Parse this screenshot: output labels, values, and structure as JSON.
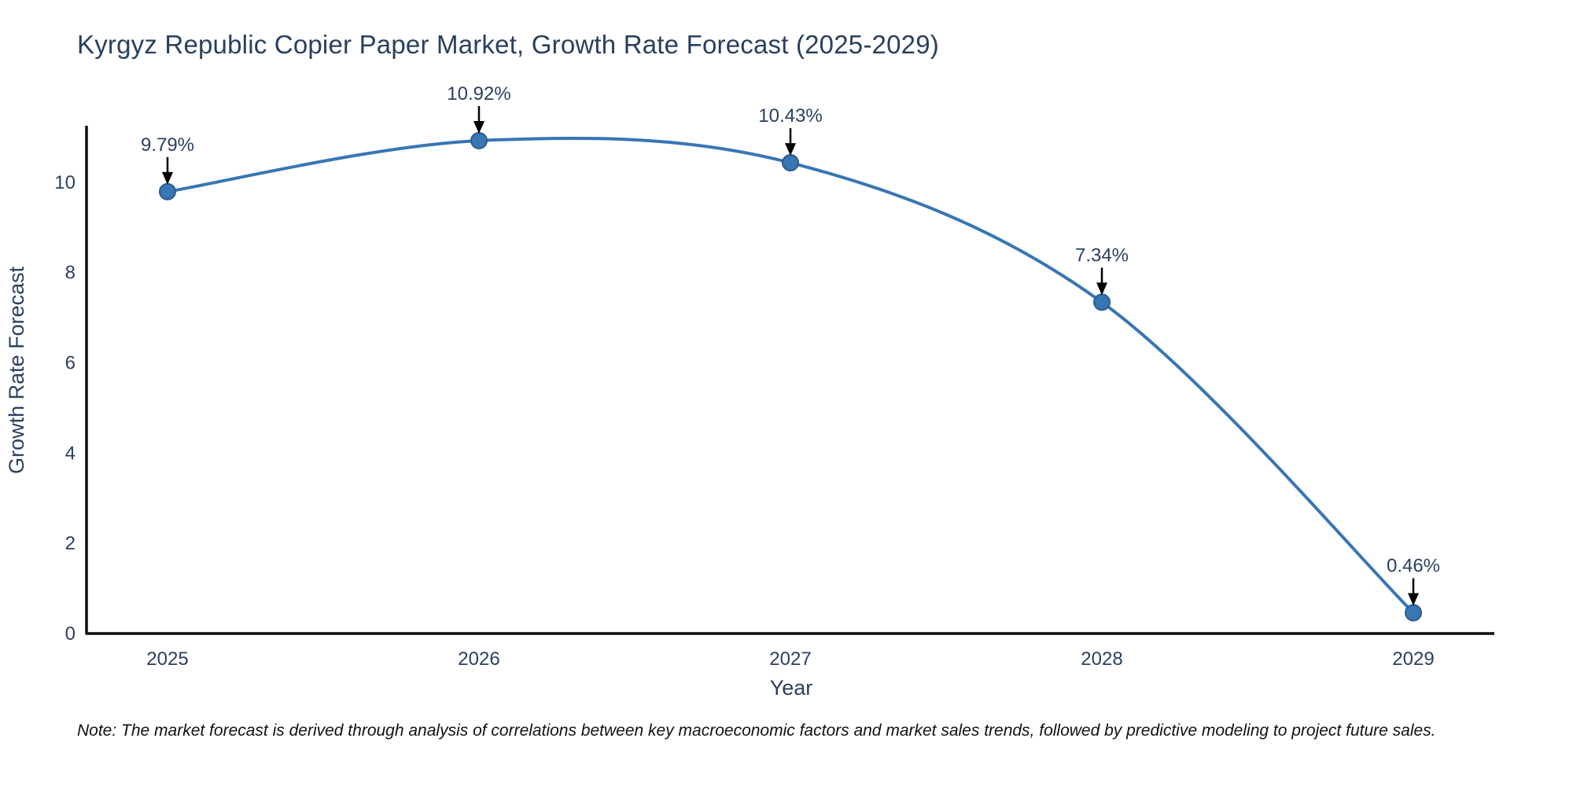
{
  "title": "Kyrgyz Republic Copier Paper Market, Growth Rate Forecast (2025-2029)",
  "note": "Note: The market forecast is derived through analysis of correlations between key macroeconomic factors and market sales trends, followed by predictive modeling to project future sales.",
  "chart_data": {
    "type": "line",
    "title": "Kyrgyz Republic Copier Paper Market, Growth Rate Forecast (2025-2029)",
    "categories": [
      "2025",
      "2026",
      "2027",
      "2028",
      "2029"
    ],
    "series": [
      {
        "name": "Growth Rate Forecast",
        "values": [
          9.79,
          10.92,
          10.43,
          7.34,
          0.46
        ]
      }
    ],
    "point_labels": [
      "9.79%",
      "10.92%",
      "10.43%",
      "7.34%",
      "0.46%"
    ],
    "xlabel": "Year",
    "ylabel": "Growth Rate Forecast",
    "yticks": [
      0,
      2,
      4,
      6,
      8,
      10
    ],
    "ylim": [
      0,
      11.25
    ],
    "line_shape": "spline",
    "grid": false,
    "legend_position": "none",
    "annotation_arrows": true,
    "colors": {
      "line": "#3876b4",
      "marker_fill": "#3876b4",
      "marker_edge": "#2b5d8c",
      "arrow": "#000000",
      "text": "#2a3f5f",
      "spine": "#0d0d0d",
      "note_text": "#111111",
      "background": "#ffffff"
    }
  }
}
